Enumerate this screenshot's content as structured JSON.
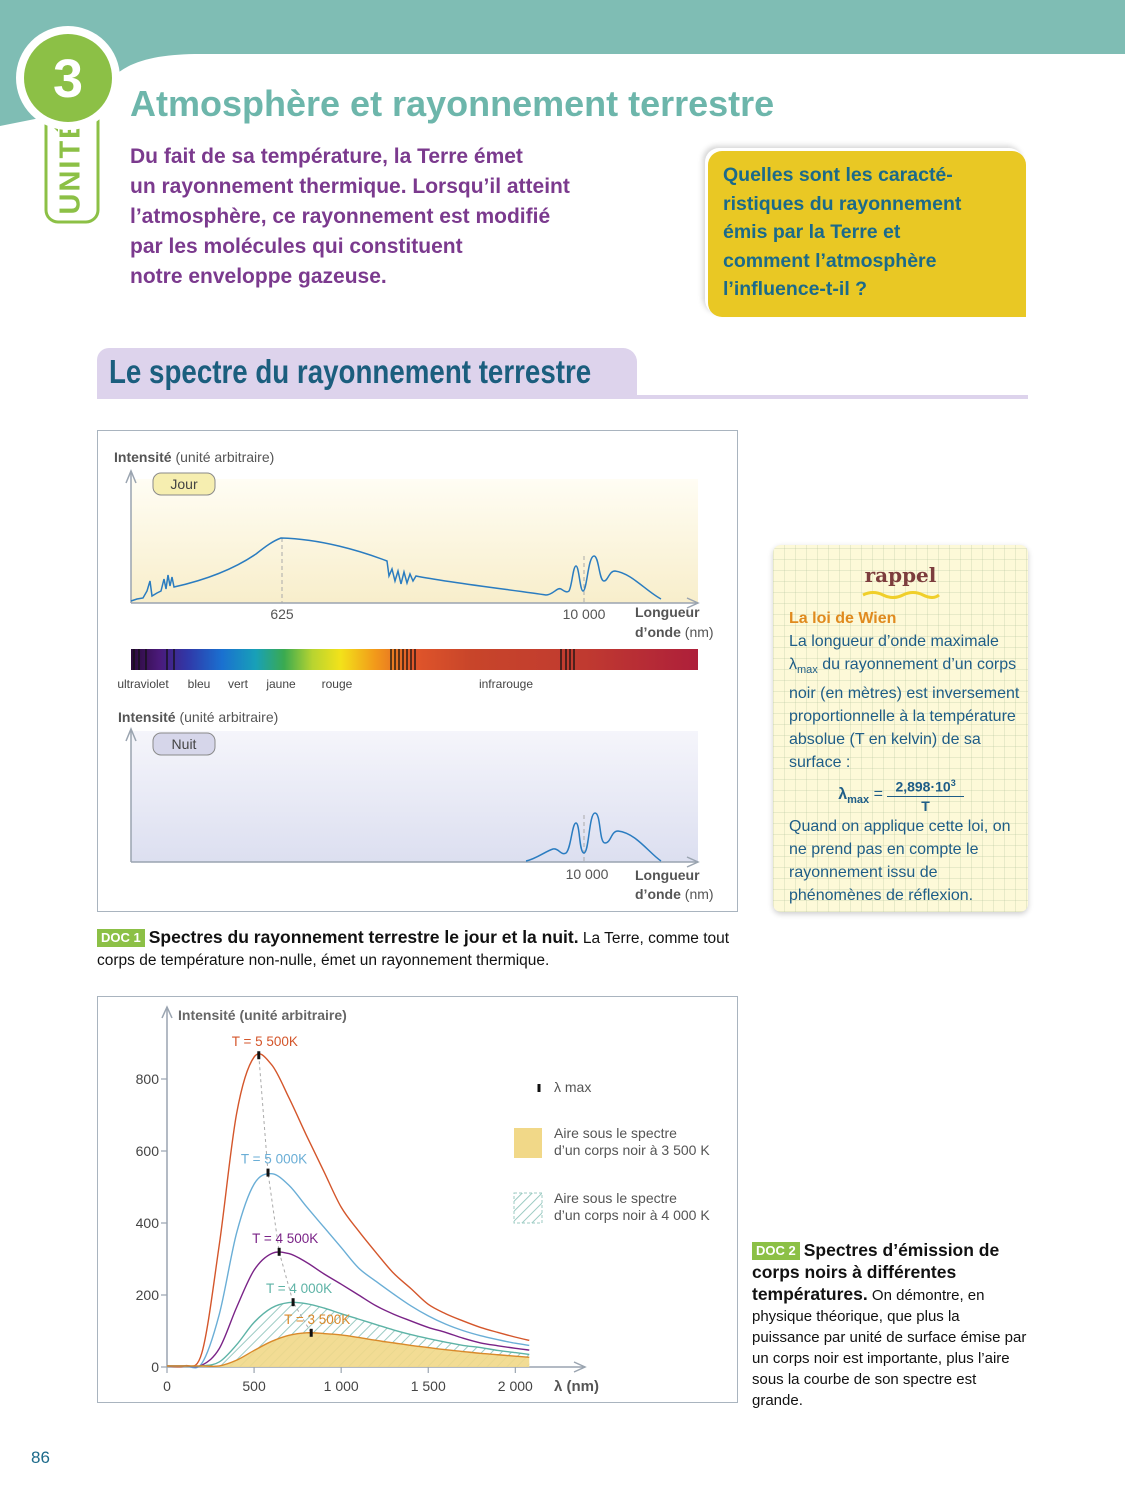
{
  "header": {
    "unit_number": "3",
    "unit_label": "UNITÉ",
    "title": "Atmosphère et rayonnement terrestre"
  },
  "intro": [
    "Du fait de sa température, la Terre émet",
    "un rayonnement thermique. Lorsqu’il atteint",
    "l’atmosphère, ce rayonnement est modifié",
    "par les molécules qui constituent",
    "notre enveloppe gazeuse."
  ],
  "question": [
    "Quelles sont les caracté-",
    "ristiques du rayonnement",
    "émis par la Terre et",
    "comment l’atmosphère",
    "l’influence-t-il ?"
  ],
  "section_title": "Le spectre du rayonnement terrestre",
  "doc1": {
    "panels": [
      {
        "tag": "Jour",
        "y_title": "Intensité",
        "y_unit": "(unité arbitraire)",
        "x_ticks": [
          "625",
          "10 000"
        ],
        "x_title": [
          "Longueur",
          "d’onde"
        ],
        "x_unit": "(nm)"
      },
      {
        "tag": "Nuit",
        "y_title": "Intensité",
        "y_unit": "(unité arbitraire)",
        "x_ticks": [
          "10 000"
        ],
        "x_title": [
          "Longueur",
          "d’onde"
        ],
        "x_unit": "(nm)"
      }
    ],
    "spectrum_bands": [
      "ultraviolet",
      "bleu",
      "vert",
      "jaune",
      "rouge",
      "infrarouge"
    ],
    "caption": {
      "tag": "DOC 1",
      "title": "Spectres du rayonnement terrestre le jour et la nuit.",
      "text": "La Terre, comme tout corps de température non-nulle, émet un rayonnement thermique."
    }
  },
  "rappel": {
    "title": "rappel",
    "subtitle": "La loi de Wien",
    "body_before": "La longueur d’onde maximale",
    "symbol": "λ",
    "symbol_sub": "max",
    "body_after": "du rayonnement d’un corps noir (en mètres) est inversement proportionnelle à la température absolue (T en kelvin) de sa surface :",
    "formula": {
      "lhs": "λ",
      "lhs_sub": "max",
      "equals": "=",
      "numerator": "2,898·10",
      "numerator_exp": "3",
      "denominator": "T"
    },
    "conclusion": "Quand on applique cette loi, on ne prend pas en compte le rayonnement issu de phénomènes de réflexion."
  },
  "chart_data": {
    "type": "line",
    "y_label": "Intensité (unité arbitraire)",
    "x_label": "λ (nm)",
    "lambda_max_label": "λ max",
    "xlim": [
      0,
      2400
    ],
    "ylim": [
      0,
      1000
    ],
    "xticks": [
      0,
      500,
      {
        "value": 1000,
        "label": "1 000"
      },
      {
        "value": 1500,
        "label": "1 500"
      },
      {
        "value": 2000,
        "label": "2 000"
      }
    ],
    "yticks": [
      0,
      200,
      400,
      600,
      800
    ],
    "x": [
      0,
      100,
      200,
      300,
      400,
      500,
      600,
      700,
      800,
      900,
      1000,
      1100,
      1200,
      1300,
      1400,
      1500,
      1600,
      1700,
      1800,
      1900,
      2000,
      2080
    ],
    "series": [
      {
        "name": "T = 5 500K",
        "color": "#d4562b",
        "lambda_max": 527,
        "peak": 866,
        "values": [
          3,
          3,
          39,
          339,
          705,
          861,
          840,
          748,
          644,
          544,
          444,
          378,
          318,
          261,
          218,
          174,
          148,
          128,
          110,
          96,
          83,
          74
        ]
      },
      {
        "name": "T = 5 000K",
        "color": "#6aaed6",
        "lambda_max": 580,
        "peak": 540,
        "values": [
          3,
          3,
          10,
          146,
          373,
          508,
          537,
          505,
          446,
          389,
          332,
          275,
          238,
          203,
          170,
          142,
          119,
          101,
          87,
          76,
          66,
          60
        ]
      },
      {
        "name": "T = 4 500K",
        "color": "#7a2387",
        "lambda_max": 644,
        "peak": 320,
        "values": [
          3,
          3,
          5,
          51,
          166,
          269,
          315,
          315,
          291,
          259,
          230,
          200,
          170,
          147,
          128,
          110,
          96,
          80,
          67,
          59,
          52,
          47
        ]
      },
      {
        "name": "T = 4 000K",
        "color": "#5db3a6",
        "lambda_max": 724,
        "peak": 180,
        "area": "hatch",
        "area_color": "#9ccbc3",
        "area_label": [
          "Aire sous le spectre",
          "d’un corps noir à 4 000 K"
        ],
        "values": [
          3,
          3,
          3,
          14,
          62,
          124,
          164,
          179,
          176,
          164,
          148,
          133,
          118,
          103,
          90,
          79,
          69,
          60,
          54,
          46,
          40,
          35
        ]
      },
      {
        "name": "T = 3 500K",
        "color": "#d9892a",
        "lambda_max": 828,
        "peak": 95,
        "area": "solid",
        "area_color": "#f1d888",
        "area_label": [
          "Aire sous le spectre",
          "d’un corps noir à 3 500 K"
        ],
        "values": [
          3,
          3,
          3,
          3,
          19,
          46,
          71,
          88,
          95,
          93,
          89,
          82,
          74,
          67,
          60,
          54,
          48,
          43,
          38,
          34,
          30,
          27
        ]
      }
    ]
  },
  "doc2": {
    "caption": {
      "tag": "DOC 2",
      "title": "Spectres d’émission de corps noirs à différentes températures.",
      "text": "On démontre, en physique théorique, que plus la puissance par unité de surface émise par un corps noir est importante, plus l’aire sous la courbe de son spectre est grande."
    }
  },
  "page_number": "86"
}
